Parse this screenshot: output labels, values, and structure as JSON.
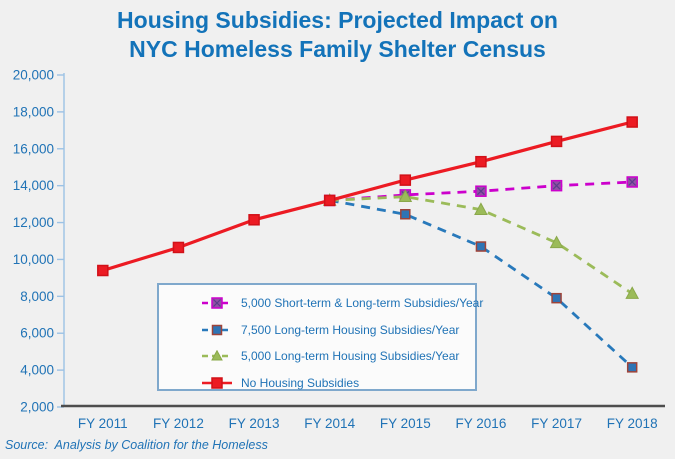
{
  "title": {
    "line1": "Housing Subsidies: Projected Impact on",
    "line2": "NYC Homeless Family Shelter Census"
  },
  "source_note": "Source:  Analysis by Coalition for the Homeless",
  "colors": {
    "background": "#F0F0F0",
    "title_text": "#1373B9",
    "axis_label_text": "#2073B6",
    "y_axis_line": "#9CC2E5",
    "x_axis_line": "#4D4D4D",
    "legend_border": "#7FA8CC",
    "legend_background": "#FBFBFB"
  },
  "chart_data": {
    "type": "line",
    "title": "Housing Subsidies: Projected Impact on NYC Homeless Family Shelter Census",
    "xlabel": "",
    "ylabel": "",
    "categories": [
      "FY 2011",
      "FY 2012",
      "FY 2013",
      "FY 2014",
      "FY 2015",
      "FY 2016",
      "FY 2017",
      "FY 2018"
    ],
    "y_axis": {
      "min": 2000,
      "max": 20000,
      "step": 2000,
      "format": "comma"
    },
    "grid": false,
    "legend_position": "inside-bottom-left",
    "series": [
      {
        "name": "5,000 Short-term & Long-term Subsidies/Year",
        "line_color": "#CC00CC",
        "line_style": "dashed",
        "line_width": 2.8,
        "marker": {
          "shape": "square-x",
          "size": 10,
          "fill": "#9350A5",
          "stroke": "#CC00CC",
          "x_stroke": "#5B3E8C"
        },
        "values": [
          null,
          null,
          null,
          13200,
          13500,
          13700,
          14000,
          14200
        ]
      },
      {
        "name": "7,500 Long-term Housing Subsidies/Year",
        "line_color": "#2879BB",
        "line_style": "dashed",
        "line_width": 2.8,
        "marker": {
          "shape": "square",
          "size": 9,
          "fill": "#2E74B5",
          "stroke": "#9E4339"
        },
        "values": [
          null,
          null,
          null,
          13200,
          12450,
          10700,
          7900,
          4150
        ]
      },
      {
        "name": "5,000 Long-term Housing Subsidies/Year",
        "line_color": "#9BBB59",
        "line_style": "dashed",
        "line_width": 2.8,
        "marker": {
          "shape": "triangle",
          "size": 12,
          "fill": "#9BBB59",
          "stroke": "#8AA84A"
        },
        "values": [
          null,
          null,
          null,
          13200,
          13400,
          12700,
          10900,
          8150
        ]
      },
      {
        "name": "No Housing Subsidies",
        "line_color": "#EC1B23",
        "line_style": "solid",
        "line_width": 3.2,
        "marker": {
          "shape": "square",
          "size": 10,
          "fill": "#EC1B23",
          "stroke": "#D11118"
        },
        "values": [
          9400,
          10650,
          12150,
          13200,
          14300,
          15300,
          16400,
          17450
        ]
      }
    ]
  }
}
